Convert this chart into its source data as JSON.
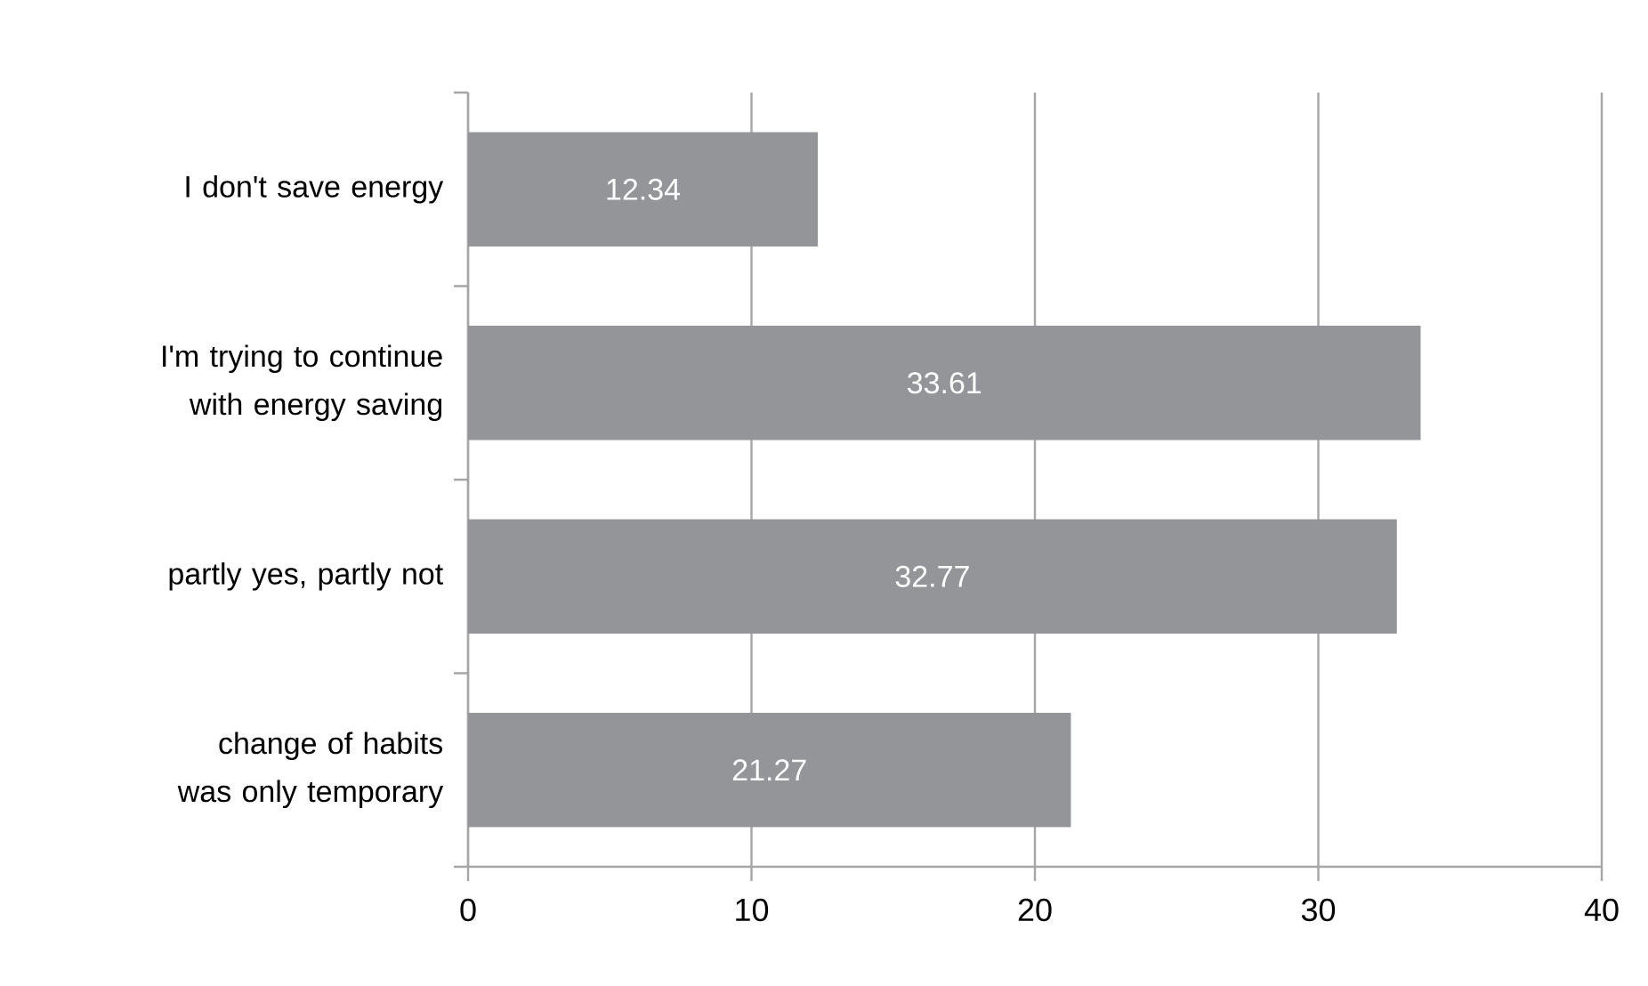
{
  "chart_data": {
    "type": "bar",
    "orientation": "horizontal",
    "categories": [
      "I don't save energy",
      "I'm trying to continue with energy saving",
      "partly yes, partly not",
      "change of habits was only temporary"
    ],
    "values": [
      12.34,
      33.61,
      32.77,
      21.27
    ],
    "color": "#939598",
    "xlim": [
      0,
      40
    ],
    "xticks": [
      0,
      10,
      20,
      30,
      40
    ],
    "grid": "x",
    "data_labels": true
  }
}
